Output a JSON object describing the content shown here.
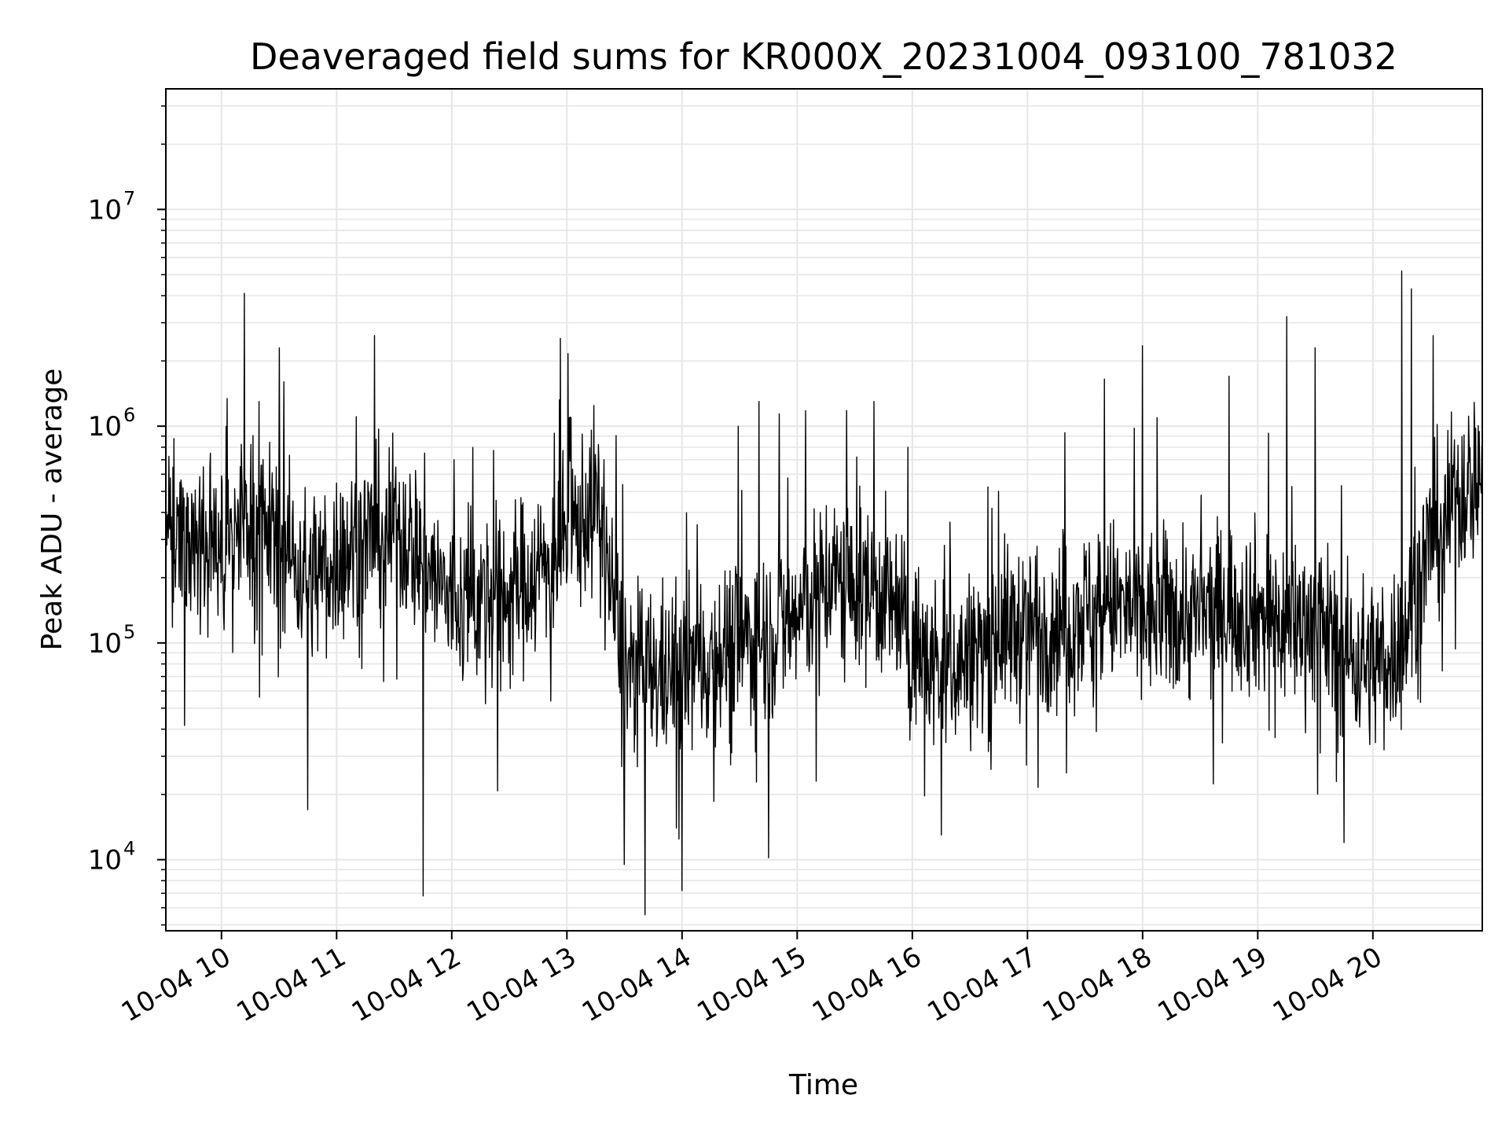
{
  "chart_data": {
    "type": "line",
    "title": "Deaveraged field sums for KR000X_20231004_093100_781032",
    "xlabel": "Time",
    "ylabel": "Peak ADU - average",
    "yscale": "log",
    "ylim": [
      4700,
      36000000
    ],
    "xlim": [
      "2023-10-04T09:31:00",
      "2023-10-04T20:57:00"
    ],
    "grid": true,
    "line_color": "#000000",
    "grid_color": "#e6e6e6",
    "x_ticks": [
      {
        "value": "2023-10-04T10:00:00",
        "label": "10-04 10"
      },
      {
        "value": "2023-10-04T11:00:00",
        "label": "10-04 11"
      },
      {
        "value": "2023-10-04T12:00:00",
        "label": "10-04 12"
      },
      {
        "value": "2023-10-04T13:00:00",
        "label": "10-04 13"
      },
      {
        "value": "2023-10-04T14:00:00",
        "label": "10-04 14"
      },
      {
        "value": "2023-10-04T15:00:00",
        "label": "10-04 15"
      },
      {
        "value": "2023-10-04T16:00:00",
        "label": "10-04 16"
      },
      {
        "value": "2023-10-04T17:00:00",
        "label": "10-04 17"
      },
      {
        "value": "2023-10-04T18:00:00",
        "label": "10-04 18"
      },
      {
        "value": "2023-10-04T19:00:00",
        "label": "10-04 19"
      },
      {
        "value": "2023-10-04T20:00:00",
        "label": "10-04 20"
      }
    ],
    "y_ticks": [
      {
        "value": 10000,
        "base": "10",
        "exp": "4"
      },
      {
        "value": 100000,
        "base": "10",
        "exp": "5"
      },
      {
        "value": 1000000,
        "base": "10",
        "exp": "6"
      },
      {
        "value": 10000000,
        "base": "10",
        "exp": "7"
      }
    ],
    "series": [
      {
        "x": [
          "2023-10-04T09:31:00",
          "2023-10-04T09:45:00",
          "2023-10-04T10:00:00",
          "2023-10-04T10:12:00",
          "2023-10-04T10:30:00",
          "2023-10-04T10:45:00",
          "2023-10-04T11:00:00",
          "2023-10-04T11:15:00",
          "2023-10-04T11:30:00",
          "2023-10-04T11:45:00",
          "2023-10-04T12:00:00",
          "2023-10-04T12:15:00",
          "2023-10-04T12:30:00",
          "2023-10-04T12:45:00",
          "2023-10-04T13:00:00",
          "2023-10-04T13:15:00",
          "2023-10-04T13:30:00",
          "2023-10-04T13:45:00",
          "2023-10-04T14:00:00",
          "2023-10-04T14:15:00",
          "2023-10-04T14:30:00",
          "2023-10-04T14:45:00",
          "2023-10-04T15:00:00",
          "2023-10-04T15:15:00",
          "2023-10-04T15:30:00",
          "2023-10-04T15:45:00",
          "2023-10-04T16:00:00",
          "2023-10-04T16:15:00",
          "2023-10-04T16:30:00",
          "2023-10-04T16:45:00",
          "2023-10-04T17:00:00",
          "2023-10-04T17:15:00",
          "2023-10-04T17:30:00",
          "2023-10-04T17:45:00",
          "2023-10-04T18:00:00",
          "2023-10-04T18:15:00",
          "2023-10-04T18:30:00",
          "2023-10-04T18:45:00",
          "2023-10-04T19:00:00",
          "2023-10-04T19:15:00",
          "2023-10-04T19:30:00",
          "2023-10-04T19:45:00",
          "2023-10-04T20:00:00",
          "2023-10-04T20:15:00",
          "2023-10-04T20:30:00",
          "2023-10-04T20:45:00",
          "2023-10-04T20:57:00"
        ],
        "y": [
          350000,
          300000,
          250000,
          400000,
          300000,
          200000,
          250000,
          300000,
          350000,
          250000,
          150000,
          160000,
          170000,
          220000,
          300000,
          450000,
          80000,
          70000,
          75000,
          90000,
          100000,
          110000,
          130000,
          200000,
          180000,
          170000,
          100000,
          75000,
          85000,
          110000,
          120000,
          125000,
          140000,
          150000,
          130000,
          140000,
          130000,
          150000,
          140000,
          120000,
          130000,
          90000,
          80000,
          100000,
          300000,
          500000,
          600000
        ],
        "spikes_up": [
          {
            "x": "2023-10-04T10:12:00",
            "y": 4100000
          },
          {
            "x": "2023-10-04T10:30:00",
            "y": 2300000
          },
          {
            "x": "2023-10-04T14:40:00",
            "y": 1300000
          },
          {
            "x": "2023-10-04T15:40:00",
            "y": 1300000
          },
          {
            "x": "2023-10-04T16:45:00",
            "y": 500000
          },
          {
            "x": "2023-10-04T17:40:00",
            "y": 1650000
          },
          {
            "x": "2023-10-04T18:00:00",
            "y": 2350000
          },
          {
            "x": "2023-10-04T18:45:00",
            "y": 1700000
          },
          {
            "x": "2023-10-04T19:15:00",
            "y": 3200000
          },
          {
            "x": "2023-10-04T19:30:00",
            "y": 2300000
          },
          {
            "x": "2023-10-04T20:15:00",
            "y": 5200000
          },
          {
            "x": "2023-10-04T20:20:00",
            "y": 4300000
          }
        ],
        "spikes_down": [
          {
            "x": "2023-10-04T10:45:00",
            "y": 17000
          },
          {
            "x": "2023-10-04T11:45:00",
            "y": 6800
          },
          {
            "x": "2023-10-04T13:30:00",
            "y": 9500
          },
          {
            "x": "2023-10-04T14:00:00",
            "y": 7200
          },
          {
            "x": "2023-10-04T14:45:00",
            "y": 10200
          },
          {
            "x": "2023-10-04T16:15:00",
            "y": 13000
          },
          {
            "x": "2023-10-04T19:45:00",
            "y": 12000
          }
        ]
      }
    ]
  }
}
